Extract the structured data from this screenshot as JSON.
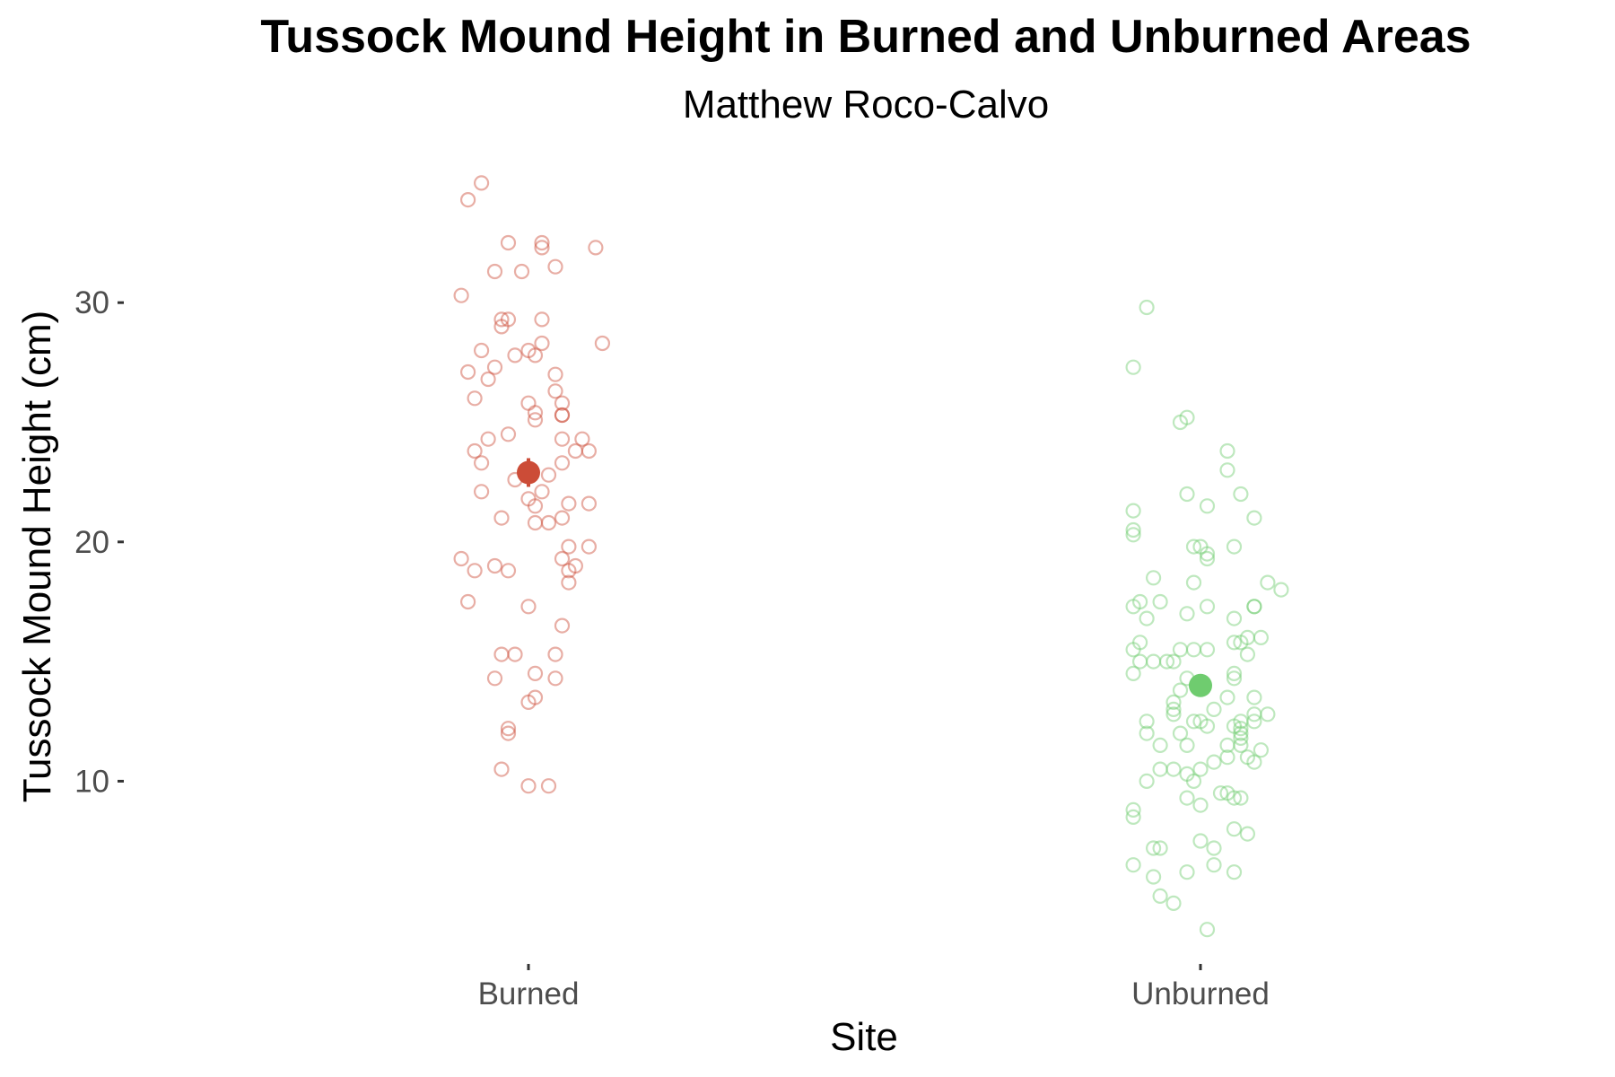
{
  "chart_data": {
    "type": "scatter",
    "title": "Tussock Mound Height in Burned and Unburned Areas",
    "subtitle": "Matthew Roco-Calvo",
    "xlabel": "Site",
    "ylabel": "Tussock Mound Height (cm)",
    "categories": [
      "Burned",
      "Unburned"
    ],
    "yticks": [
      10,
      20,
      30
    ],
    "ylim": [
      3.0,
      36.0
    ],
    "grid": false,
    "series": [
      {
        "name": "Burned",
        "color": "#cc4c37",
        "mean": 22.9,
        "ci": [
          22.3,
          23.5
        ],
        "points": [
          {
            "jitter": -0.09,
            "y": 34.3
          },
          {
            "jitter": -0.07,
            "y": 35.0
          },
          {
            "jitter": -0.03,
            "y": 32.5
          },
          {
            "jitter": 0.02,
            "y": 32.3
          },
          {
            "jitter": 0.02,
            "y": 32.5
          },
          {
            "jitter": 0.1,
            "y": 32.3
          },
          {
            "jitter": -0.05,
            "y": 31.3
          },
          {
            "jitter": -0.01,
            "y": 31.3
          },
          {
            "jitter": 0.04,
            "y": 31.5
          },
          {
            "jitter": -0.1,
            "y": 30.3
          },
          {
            "jitter": -0.04,
            "y": 29.3
          },
          {
            "jitter": -0.03,
            "y": 29.3
          },
          {
            "jitter": -0.04,
            "y": 29.0
          },
          {
            "jitter": 0.02,
            "y": 29.3
          },
          {
            "jitter": 0.11,
            "y": 28.3
          },
          {
            "jitter": -0.07,
            "y": 28.0
          },
          {
            "jitter": 0.0,
            "y": 28.0
          },
          {
            "jitter": 0.02,
            "y": 28.3
          },
          {
            "jitter": -0.02,
            "y": 27.8
          },
          {
            "jitter": 0.01,
            "y": 27.8
          },
          {
            "jitter": -0.09,
            "y": 27.1
          },
          {
            "jitter": -0.05,
            "y": 27.3
          },
          {
            "jitter": -0.06,
            "y": 26.8
          },
          {
            "jitter": 0.04,
            "y": 27.0
          },
          {
            "jitter": -0.08,
            "y": 26.0
          },
          {
            "jitter": 0.04,
            "y": 26.3
          },
          {
            "jitter": 0.0,
            "y": 25.8
          },
          {
            "jitter": 0.01,
            "y": 25.4
          },
          {
            "jitter": 0.05,
            "y": 25.8
          },
          {
            "jitter": 0.01,
            "y": 25.1
          },
          {
            "jitter": 0.05,
            "y": 25.3
          },
          {
            "jitter": 0.05,
            "y": 25.3
          },
          {
            "jitter": -0.03,
            "y": 24.5
          },
          {
            "jitter": -0.06,
            "y": 24.3
          },
          {
            "jitter": 0.05,
            "y": 24.3
          },
          {
            "jitter": 0.08,
            "y": 24.3
          },
          {
            "jitter": -0.08,
            "y": 23.8
          },
          {
            "jitter": 0.07,
            "y": 23.8
          },
          {
            "jitter": 0.09,
            "y": 23.8
          },
          {
            "jitter": -0.07,
            "y": 23.3
          },
          {
            "jitter": 0.05,
            "y": 23.3
          },
          {
            "jitter": 0.03,
            "y": 22.8
          },
          {
            "jitter": -0.02,
            "y": 22.6
          },
          {
            "jitter": 0.02,
            "y": 22.1
          },
          {
            "jitter": -0.07,
            "y": 22.1
          },
          {
            "jitter": 0.0,
            "y": 21.8
          },
          {
            "jitter": 0.01,
            "y": 21.5
          },
          {
            "jitter": 0.06,
            "y": 21.6
          },
          {
            "jitter": 0.09,
            "y": 21.6
          },
          {
            "jitter": -0.04,
            "y": 21.0
          },
          {
            "jitter": 0.05,
            "y": 21.0
          },
          {
            "jitter": 0.01,
            "y": 20.8
          },
          {
            "jitter": 0.03,
            "y": 20.8
          },
          {
            "jitter": -0.1,
            "y": 19.3
          },
          {
            "jitter": -0.08,
            "y": 18.8
          },
          {
            "jitter": -0.05,
            "y": 19.0
          },
          {
            "jitter": -0.03,
            "y": 18.8
          },
          {
            "jitter": 0.05,
            "y": 19.3
          },
          {
            "jitter": 0.06,
            "y": 18.8
          },
          {
            "jitter": 0.07,
            "y": 19.0
          },
          {
            "jitter": 0.06,
            "y": 19.8
          },
          {
            "jitter": 0.09,
            "y": 19.8
          },
          {
            "jitter": 0.06,
            "y": 18.3
          },
          {
            "jitter": -0.09,
            "y": 17.5
          },
          {
            "jitter": 0.0,
            "y": 17.3
          },
          {
            "jitter": 0.05,
            "y": 16.5
          },
          {
            "jitter": -0.04,
            "y": 15.3
          },
          {
            "jitter": -0.02,
            "y": 15.3
          },
          {
            "jitter": 0.04,
            "y": 15.3
          },
          {
            "jitter": -0.05,
            "y": 14.3
          },
          {
            "jitter": 0.01,
            "y": 14.5
          },
          {
            "jitter": 0.04,
            "y": 14.3
          },
          {
            "jitter": 0.0,
            "y": 13.3
          },
          {
            "jitter": 0.01,
            "y": 13.5
          },
          {
            "jitter": -0.03,
            "y": 12.0
          },
          {
            "jitter": -0.03,
            "y": 12.2
          },
          {
            "jitter": -0.04,
            "y": 10.5
          },
          {
            "jitter": 0.0,
            "y": 9.8
          },
          {
            "jitter": 0.03,
            "y": 9.8
          }
        ]
      },
      {
        "name": "Unburned",
        "color": "#6fcc6f",
        "mean": 14.0,
        "ci": [
          13.7,
          14.3
        ],
        "points": [
          {
            "jitter": -0.08,
            "y": 29.8
          },
          {
            "jitter": -0.1,
            "y": 27.3
          },
          {
            "jitter": -0.03,
            "y": 25.0
          },
          {
            "jitter": -0.02,
            "y": 25.2
          },
          {
            "jitter": 0.04,
            "y": 23.8
          },
          {
            "jitter": 0.04,
            "y": 23.0
          },
          {
            "jitter": -0.02,
            "y": 22.0
          },
          {
            "jitter": 0.01,
            "y": 21.5
          },
          {
            "jitter": 0.06,
            "y": 22.0
          },
          {
            "jitter": -0.1,
            "y": 21.3
          },
          {
            "jitter": 0.08,
            "y": 21.0
          },
          {
            "jitter": -0.1,
            "y": 20.5
          },
          {
            "jitter": -0.1,
            "y": 20.3
          },
          {
            "jitter": -0.01,
            "y": 19.8
          },
          {
            "jitter": 0.0,
            "y": 19.8
          },
          {
            "jitter": 0.01,
            "y": 19.5
          },
          {
            "jitter": 0.05,
            "y": 19.8
          },
          {
            "jitter": 0.01,
            "y": 19.3
          },
          {
            "jitter": -0.07,
            "y": 18.5
          },
          {
            "jitter": -0.01,
            "y": 18.3
          },
          {
            "jitter": 0.1,
            "y": 18.3
          },
          {
            "jitter": 0.12,
            "y": 18.0
          },
          {
            "jitter": -0.1,
            "y": 17.3
          },
          {
            "jitter": -0.09,
            "y": 17.5
          },
          {
            "jitter": -0.06,
            "y": 17.5
          },
          {
            "jitter": -0.02,
            "y": 17.0
          },
          {
            "jitter": 0.01,
            "y": 17.3
          },
          {
            "jitter": 0.08,
            "y": 17.3
          },
          {
            "jitter": 0.08,
            "y": 17.3
          },
          {
            "jitter": -0.08,
            "y": 16.8
          },
          {
            "jitter": 0.05,
            "y": 16.8
          },
          {
            "jitter": 0.07,
            "y": 16.0
          },
          {
            "jitter": 0.09,
            "y": 16.0
          },
          {
            "jitter": 0.05,
            "y": 15.8
          },
          {
            "jitter": 0.06,
            "y": 15.8
          },
          {
            "jitter": -0.09,
            "y": 15.8
          },
          {
            "jitter": -0.1,
            "y": 15.5
          },
          {
            "jitter": -0.03,
            "y": 15.5
          },
          {
            "jitter": -0.01,
            "y": 15.5
          },
          {
            "jitter": 0.01,
            "y": 15.5
          },
          {
            "jitter": 0.07,
            "y": 15.3
          },
          {
            "jitter": -0.09,
            "y": 15.0
          },
          {
            "jitter": -0.07,
            "y": 15.0
          },
          {
            "jitter": -0.05,
            "y": 15.0
          },
          {
            "jitter": -0.04,
            "y": 15.0
          },
          {
            "jitter": -0.1,
            "y": 14.5
          },
          {
            "jitter": -0.02,
            "y": 14.3
          },
          {
            "jitter": 0.05,
            "y": 14.3
          },
          {
            "jitter": 0.05,
            "y": 14.5
          },
          {
            "jitter": -0.03,
            "y": 13.8
          },
          {
            "jitter": 0.04,
            "y": 13.5
          },
          {
            "jitter": 0.08,
            "y": 13.5
          },
          {
            "jitter": -0.04,
            "y": 13.3
          },
          {
            "jitter": -0.04,
            "y": 13.0
          },
          {
            "jitter": -0.04,
            "y": 12.8
          },
          {
            "jitter": 0.02,
            "y": 13.0
          },
          {
            "jitter": 0.08,
            "y": 12.8
          },
          {
            "jitter": 0.1,
            "y": 12.8
          },
          {
            "jitter": -0.08,
            "y": 12.5
          },
          {
            "jitter": -0.01,
            "y": 12.5
          },
          {
            "jitter": 0.0,
            "y": 12.5
          },
          {
            "jitter": 0.05,
            "y": 12.3
          },
          {
            "jitter": 0.06,
            "y": 12.5
          },
          {
            "jitter": 0.06,
            "y": 12.2
          },
          {
            "jitter": 0.08,
            "y": 12.5
          },
          {
            "jitter": -0.08,
            "y": 12.0
          },
          {
            "jitter": -0.03,
            "y": 12.0
          },
          {
            "jitter": 0.01,
            "y": 12.3
          },
          {
            "jitter": 0.06,
            "y": 12.0
          },
          {
            "jitter": 0.06,
            "y": 11.8
          },
          {
            "jitter": -0.06,
            "y": 11.5
          },
          {
            "jitter": -0.02,
            "y": 11.5
          },
          {
            "jitter": 0.04,
            "y": 11.5
          },
          {
            "jitter": 0.06,
            "y": 11.5
          },
          {
            "jitter": 0.09,
            "y": 11.3
          },
          {
            "jitter": 0.02,
            "y": 10.8
          },
          {
            "jitter": 0.04,
            "y": 11.0
          },
          {
            "jitter": 0.07,
            "y": 11.0
          },
          {
            "jitter": 0.08,
            "y": 10.8
          },
          {
            "jitter": -0.06,
            "y": 10.5
          },
          {
            "jitter": -0.04,
            "y": 10.5
          },
          {
            "jitter": 0.0,
            "y": 10.5
          },
          {
            "jitter": -0.08,
            "y": 10.0
          },
          {
            "jitter": -0.01,
            "y": 10.0
          },
          {
            "jitter": -0.02,
            "y": 10.3
          },
          {
            "jitter": -0.02,
            "y": 9.3
          },
          {
            "jitter": 0.0,
            "y": 9.0
          },
          {
            "jitter": 0.03,
            "y": 9.5
          },
          {
            "jitter": 0.04,
            "y": 9.5
          },
          {
            "jitter": 0.05,
            "y": 9.3
          },
          {
            "jitter": 0.06,
            "y": 9.3
          },
          {
            "jitter": -0.1,
            "y": 8.8
          },
          {
            "jitter": -0.1,
            "y": 8.5
          },
          {
            "jitter": 0.05,
            "y": 8.0
          },
          {
            "jitter": 0.07,
            "y": 7.8
          },
          {
            "jitter": 0.0,
            "y": 7.5
          },
          {
            "jitter": 0.02,
            "y": 7.2
          },
          {
            "jitter": -0.07,
            "y": 7.2
          },
          {
            "jitter": -0.06,
            "y": 7.2
          },
          {
            "jitter": -0.1,
            "y": 6.5
          },
          {
            "jitter": -0.02,
            "y": 6.2
          },
          {
            "jitter": 0.02,
            "y": 6.5
          },
          {
            "jitter": 0.05,
            "y": 6.2
          },
          {
            "jitter": -0.07,
            "y": 6.0
          },
          {
            "jitter": -0.06,
            "y": 5.2
          },
          {
            "jitter": -0.04,
            "y": 4.9
          },
          {
            "jitter": 0.01,
            "y": 3.8
          }
        ]
      }
    ]
  }
}
